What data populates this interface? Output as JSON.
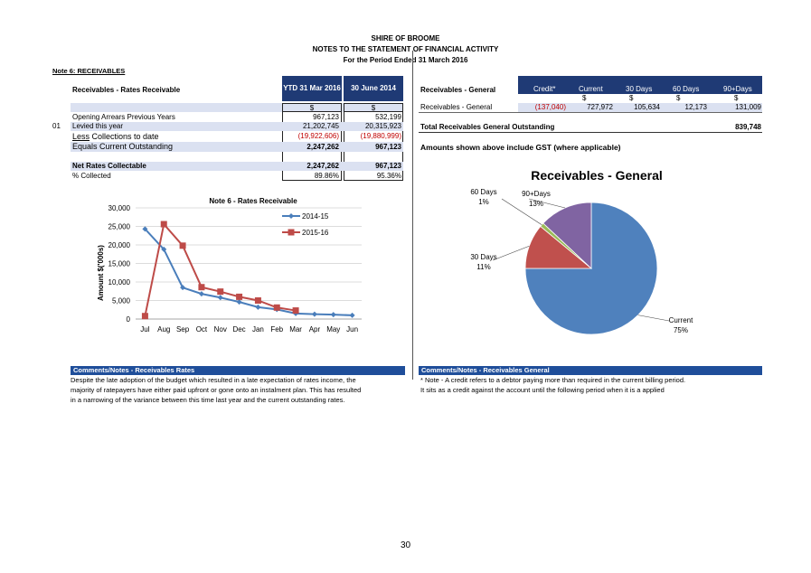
{
  "header": {
    "org": "SHIRE OF BROOME",
    "title": "NOTES TO THE STATEMENT OF FINANCIAL ACTIVITY",
    "period": "For the Period Ended 31 March 2016"
  },
  "note_heading": "Note 6: RECEIVABLES",
  "rates_table": {
    "title": "Receivables - Rates Receivable",
    "col1": "YTD 31 Mar 2016",
    "col2": "30 June 2014",
    "currency1": "$",
    "currency2": "$",
    "rows": [
      {
        "code": "",
        "label": "Opening Arrears Previous Years",
        "v1": "967,123",
        "v2": "532,199"
      },
      {
        "code": "01",
        "label": "Levied this year",
        "v1": "21,202,745",
        "v2": "20,315,923"
      },
      {
        "code": "",
        "label_prefix": "Less",
        "label": " Collections to date",
        "v1": "(19,922,606)",
        "v2": "(19,880,999)"
      },
      {
        "code": "",
        "label": "Equals Current Outstanding",
        "v1": "2,247,262",
        "v2": "967,123"
      }
    ],
    "net_label": "Net Rates Collectable",
    "net_v1": "2,247,262",
    "net_v2": "967,123",
    "pct_label": "% Collected",
    "pct_v1": "89.86%",
    "pct_v2": "95.36%"
  },
  "general_table": {
    "title": "Receivables - General",
    "headers": [
      "Credit*",
      "Current",
      "30 Days",
      "60 Days",
      "90+Days"
    ],
    "currency": [
      "",
      "$",
      "$",
      "$",
      "$"
    ],
    "row_label": "Receivables - General",
    "row_values": [
      "(137,040)",
      "727,972",
      "105,634",
      "12,173",
      "131,009"
    ],
    "total_label": "Total Receivables General Outstanding",
    "total_value": "839,748",
    "gst_note": "Amounts shown above include GST (where applicable)"
  },
  "chart_data": [
    {
      "type": "line",
      "title": "Note 6 - Rates Receivable",
      "ylabel": "Amount $('000s)",
      "xlabel": "",
      "categories": [
        "Jul",
        "Aug",
        "Sep",
        "Oct",
        "Nov",
        "Dec",
        "Jan",
        "Feb",
        "Mar",
        "Apr",
        "May",
        "Jun"
      ],
      "ylim": [
        0,
        30000
      ],
      "yticks": [
        "0",
        "5,000",
        "10,000",
        "15,000",
        "20,000",
        "25,000",
        "30,000"
      ],
      "series": [
        {
          "name": "2014-15",
          "color": "#4a7ebb",
          "values": [
            24300,
            18800,
            8500,
            6800,
            5800,
            4600,
            3200,
            2600,
            1500,
            1300,
            1200,
            1000
          ]
        },
        {
          "name": "2015-16",
          "color": "#be4b48",
          "values": [
            800,
            25600,
            19800,
            8600,
            7400,
            6000,
            5000,
            3100,
            2300,
            null,
            null,
            null
          ]
        }
      ]
    },
    {
      "type": "pie",
      "title": "Receivables - General",
      "slices": [
        {
          "label": "Current",
          "pct_label": "75%",
          "value": 75,
          "color": "#4f81bd"
        },
        {
          "label": "30 Days",
          "pct_label": "11%",
          "value": 11,
          "color": "#c0504d"
        },
        {
          "label": "60 Days",
          "pct_label": "1%",
          "value": 1,
          "color": "#9bbb59"
        },
        {
          "label": "90+Days",
          "pct_label": "13%",
          "value": 13,
          "color": "#8064a2"
        }
      ]
    }
  ],
  "comments_rates": {
    "title": "Comments/Notes - Receivables Rates",
    "lines": [
      "Despite the late adoption of the budget which resulted in a late expectation of rates income, the",
      "majority of ratepayers have either paid upfront  or gone onto an instalment plan. This has resulted",
      "in a narrowing of the variance between this time last year and the current outstanding rates."
    ]
  },
  "comments_general": {
    "title": "Comments/Notes - Receivables General",
    "lines": [
      "* Note - A credit refers to a debtor paying more than required in the current billing period.",
      "It sits as a credit against the account until the following period when it is a applied"
    ]
  },
  "page_number": "30"
}
